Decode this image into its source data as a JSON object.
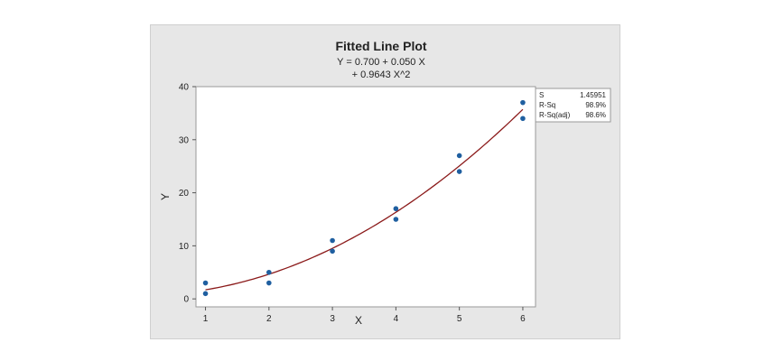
{
  "chart_data": {
    "type": "scatter",
    "title": "Fitted Line Plot",
    "subtitle_lines": [
      "Y = 0.700 + 0.050 X",
      "+ 0.9643 X^2"
    ],
    "xlabel": "X",
    "ylabel": "Y",
    "xlim": [
      0.85,
      6.2
    ],
    "ylim": [
      -1.5,
      40
    ],
    "x_ticks": [
      1,
      2,
      3,
      4,
      5,
      6
    ],
    "y_ticks": [
      0,
      10,
      20,
      30,
      40
    ],
    "grid": false,
    "points": {
      "x": [
        1,
        1,
        2,
        2,
        3,
        3,
        4,
        4,
        5,
        5,
        6,
        6
      ],
      "y": [
        1,
        3,
        3,
        5,
        9,
        11,
        15,
        17,
        24,
        27,
        34,
        37
      ]
    },
    "fit": {
      "intercept": 0.7,
      "linear": 0.05,
      "quadratic": 0.9643,
      "x_range": [
        1,
        6
      ]
    },
    "stats": [
      {
        "label": "S",
        "value": "1.45951"
      },
      {
        "label": "R-Sq",
        "value": "98.9%"
      },
      {
        "label": "R-Sq(adj)",
        "value": "98.6%"
      }
    ],
    "colors": {
      "point": "#1f5fa0",
      "fit_line": "#8b1a1a",
      "panel": "#e7e7e7",
      "plot_bg": "#ffffff"
    }
  }
}
